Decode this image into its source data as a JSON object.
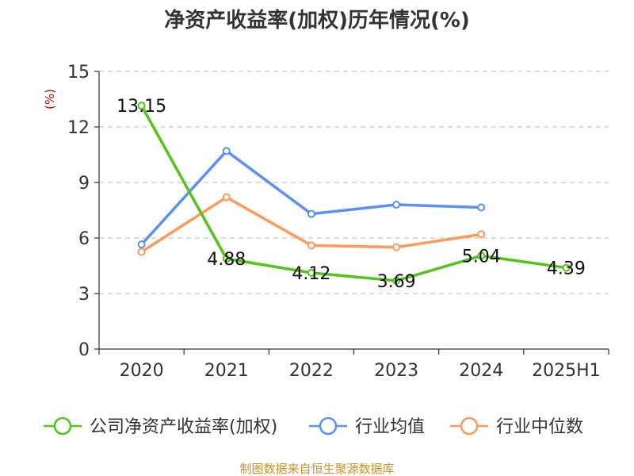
{
  "chart_data": {
    "type": "line",
    "title": "净资产收益率(加权)历年情况(%)",
    "ylabel": "(%)",
    "xlabel": "",
    "categories": [
      "2020",
      "2021",
      "2022",
      "2023",
      "2024",
      "2025H1"
    ],
    "ylim": [
      0,
      15
    ],
    "yticks": [
      0,
      3,
      6,
      9,
      12,
      15
    ],
    "grid": true,
    "legend_position": "bottom",
    "series": [
      {
        "name": "公司净资产收益率(加权)",
        "color": "#52c41a",
        "values": [
          13.15,
          4.88,
          4.12,
          3.69,
          5.04,
          4.39
        ],
        "labels": [
          "13.15",
          "4.88",
          "4.12",
          "3.69",
          "5.04",
          "4.39"
        ]
      },
      {
        "name": "行业均值",
        "color": "#5b8ff9",
        "values": [
          5.65,
          10.7,
          7.3,
          7.8,
          7.65,
          null
        ]
      },
      {
        "name": "行业中位数",
        "color": "#ff9a5a",
        "values": [
          5.25,
          8.2,
          5.6,
          5.5,
          6.2,
          null
        ]
      }
    ]
  },
  "source_note": "制图数据来自恒生聚源数据库"
}
